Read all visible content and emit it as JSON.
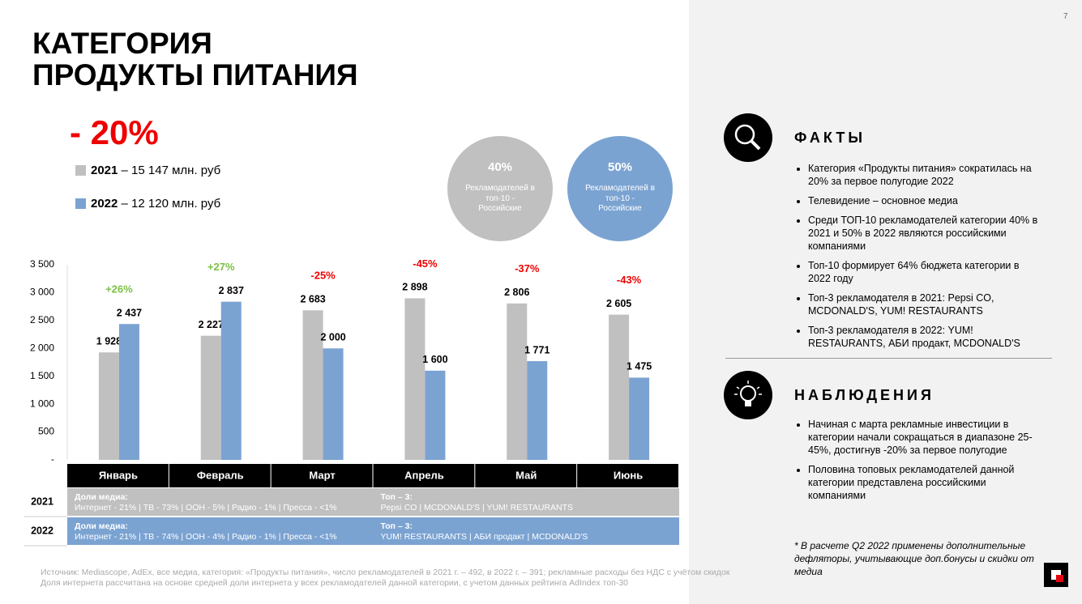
{
  "page_number": "7",
  "title_lines": [
    "КАТЕГОРИЯ",
    "ПРОДУКТЫ ПИТАНИЯ"
  ],
  "change_label": "- 20%",
  "chart_data": {
    "type": "bar",
    "categories": [
      "Январь",
      "Февраль",
      "Март",
      "Апрель",
      "Май",
      "Июнь"
    ],
    "series": [
      {
        "name": "2021",
        "summary": "– 15 147 млн. руб",
        "color": "#c0c0c0",
        "values": [
          1928,
          2227,
          2683,
          2898,
          2806,
          2605
        ],
        "value_labels": [
          "1 928",
          "2 227",
          "2 683",
          "2 898",
          "2 806",
          "2 605"
        ]
      },
      {
        "name": "2022",
        "summary": "– 12 120 млн. руб",
        "color": "#7ba3d2",
        "values": [
          2437,
          2837,
          2000,
          1600,
          1771,
          1475
        ],
        "value_labels": [
          "2 437",
          "2 837",
          "2 000",
          "1 600",
          "1 771",
          "1 475"
        ]
      }
    ],
    "changes": {
      "values": [
        26,
        27,
        -25,
        -45,
        -37,
        -43
      ],
      "value_labels": [
        "+26%",
        "+27%",
        "-25%",
        "-45%",
        "-37%",
        "-43%"
      ],
      "positive_color": "#7ac143",
      "negative_color": "#ee0000"
    },
    "ylim": [
      0,
      3500
    ],
    "yticks": [
      {
        "value": 0,
        "label": "-"
      },
      500,
      {
        "value": 1000,
        "label": "1 000"
      },
      {
        "value": 1500,
        "label": "1 500"
      },
      {
        "value": 2000,
        "label": "2 000"
      },
      {
        "value": 2500,
        "label": "2 500"
      },
      {
        "value": 3000,
        "label": "3 000"
      },
      {
        "value": 3500,
        "label": "3 500"
      }
    ]
  },
  "circles": [
    {
      "value": "40%",
      "label": "Рекламодателей в топ-10 - Российские",
      "color": "#c0c0c0"
    },
    {
      "value": "50%",
      "label": "Рекламодателей в топ-10 - Российские",
      "color": "#7ba3d2"
    }
  ],
  "table": {
    "rows": [
      {
        "year": "2021",
        "media_title": "Доли медиа:",
        "media": "Интернет - 21% | ТВ - 73% | ООН - 5% | Радио - 1% | Пресса - <1%",
        "top_title": "Топ – 3:",
        "top": "Pepsi CO | MCDONALD'S | YUM! RESTAURANTS"
      },
      {
        "year": "2022",
        "media_title": "Доли медиа:",
        "media": "Интернет - 21% | ТВ - 74% | ООН - 4% | Радио - 1% | Пресса - <1%",
        "top_title": "Топ – 3:",
        "top": "YUM! RESTAURANTS | АБИ продакт | MCDONALD'S"
      }
    ]
  },
  "facts": {
    "heading": "ФАКТЫ",
    "items": [
      "Категория «Продукты питания» сократилась на 20% за первое полугодие 2022",
      "Телевидение – основное медиа",
      "Среди ТОП-10 рекламодателей категории 40% в 2021 и 50% в 2022 являются российскими компаниями",
      "Топ-10 формирует 64% бюджета категории в 2022 году",
      "Топ-3 рекламодателя в 2021: Pepsi CO, MCDONALD'S, YUM! RESTAURANTS",
      "Топ-3 рекламодателя в 2022: YUM! RESTAURANTS, АБИ продакт, MCDONALD'S"
    ]
  },
  "observations": {
    "heading": "НАБЛЮДЕНИЯ",
    "items": [
      "Начиная с марта рекламные инвестиции в категории начали сокращаться в диапазоне 25-45%, достигнув -20% за первое полугодие",
      "Половина топовых рекламодателей данной категории представлена российскими компаниями"
    ]
  },
  "note": "* В расчете Q2 2022 применены дополнительные дефляторы, учитывающие доп.бонусы и скидки от медиа",
  "footer": [
    "Источник: Mediascope, AdEx, все медиа, категория: «Продукты питания», число рекламодателей в 2021 г. – 492, в 2022 г. – 391; рекламные расходы без НДС с учётом скидок",
    "Доля интернета рассчитана на основе средней доли интернета у всех рекламодателей данной категории, с учетом данных рейтинга  AdIndex топ-30"
  ]
}
